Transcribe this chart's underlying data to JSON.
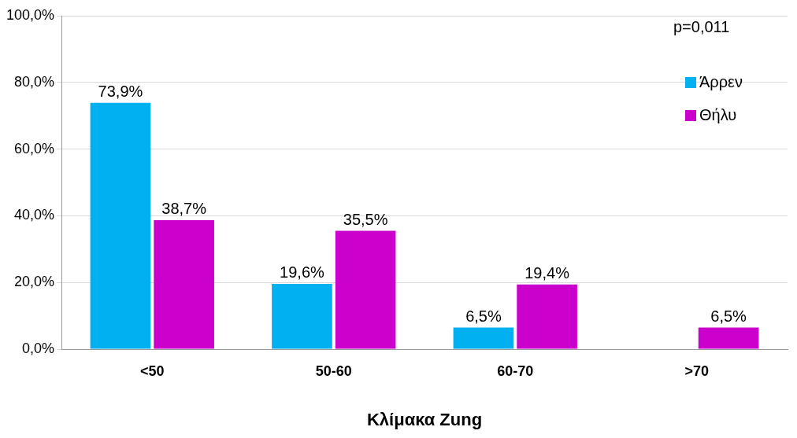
{
  "chart_data": {
    "type": "bar",
    "xlabel": "Κλίμακα Zung",
    "categories": [
      "<50",
      "50-60",
      "60-70",
      ">70"
    ],
    "series": [
      {
        "name": "Άρρεν",
        "color": "#00b0f0",
        "values": [
          73.9,
          19.6,
          6.5,
          null
        ],
        "value_labels": [
          "73,9%",
          "19,6%",
          "6,5%",
          null
        ]
      },
      {
        "name": "Θήλυ",
        "color": "#cc00cc",
        "values": [
          38.7,
          35.5,
          19.4,
          6.5
        ],
        "value_labels": [
          "38,7%",
          "35,5%",
          "19,4%",
          "6,5%"
        ]
      }
    ],
    "ylim": [
      0,
      100
    ],
    "yticks": [
      {
        "value": 0,
        "label": "0,0%"
      },
      {
        "value": 20,
        "label": "20,0%"
      },
      {
        "value": 40,
        "label": "40,0%"
      },
      {
        "value": 60,
        "label": "60,0%"
      },
      {
        "value": 80,
        "label": "80,0%"
      },
      {
        "value": 100,
        "label": "100,0%"
      }
    ],
    "grid": "y",
    "legend": "top right",
    "annotations": [
      "p=0,011"
    ]
  }
}
